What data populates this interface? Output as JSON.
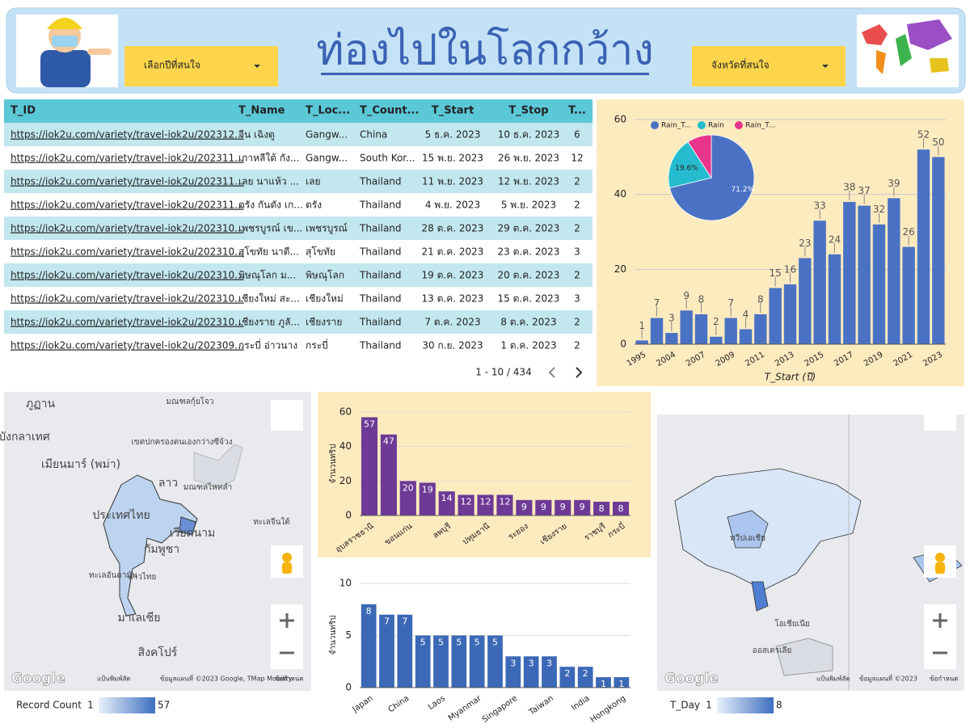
{
  "header": {
    "title": "ท่องไปในโลกกว้าง",
    "dropdown_year": "เลือกปีที่สนใจ",
    "dropdown_province": "จังหวัดที่สนใจ"
  },
  "table": {
    "columns": [
      "T_ID",
      "T_Name",
      "T_Loc...",
      "T_Count...",
      "T_Start",
      "T_Stop",
      "T..."
    ],
    "rows": [
      [
        "https://iok2u.com/variety/travel-iok2u/202312...",
        "จีน เฉิงตู",
        "Gangw...",
        "China",
        "5 ธ.ค. 2023",
        "10 ธ.ค. 2023",
        6
      ],
      [
        "https://iok2u.com/variety/travel-iok2u/202311...",
        "เกาหลีใต้ กัง...",
        "Gangw...",
        "South Kor...",
        "15 พ.ย. 2023",
        "26 พ.ย. 2023",
        12
      ],
      [
        "https://iok2u.com/variety/travel-iok2u/202311...",
        "เลย นาแห้ว ...",
        "เลย",
        "Thailand",
        "11 พ.ย. 2023",
        "12 พ.ย. 2023",
        2
      ],
      [
        "https://iok2u.com/variety/travel-iok2u/202311...",
        "ตรัง กันตัง เก...",
        "ตรัง",
        "Thailand",
        "4 พ.ย. 2023",
        "5 พ.ย. 2023",
        2
      ],
      [
        "https://iok2u.com/variety/travel-iok2u/202310...",
        "เพชรบูรณ์ เข...",
        "เพชรบูรณ์",
        "Thailand",
        "28 ต.ค. 2023",
        "29 ต.ค. 2023",
        2
      ],
      [
        "https://iok2u.com/variety/travel-iok2u/202310...",
        "สุโขทัย นาตี...",
        "สุโขทัย",
        "Thailand",
        "21 ต.ค. 2023",
        "23 ต.ค. 2023",
        3
      ],
      [
        "https://iok2u.com/variety/travel-iok2u/202310...",
        "พิษณุโลก ม...",
        "พิษณุโลก",
        "Thailand",
        "19 ต.ค. 2023",
        "20 ต.ค. 2023",
        2
      ],
      [
        "https://iok2u.com/variety/travel-iok2u/202310...",
        "เชียงใหม่ สะ...",
        "เชียงใหม่",
        "Thailand",
        "13 ต.ค. 2023",
        "15 ต.ค. 2023",
        3
      ],
      [
        "https://iok2u.com/variety/travel-iok2u/202310...",
        "เชียงราย ภูลั...",
        "เชียงราย",
        "Thailand",
        "7 ต.ค. 2023",
        "8 ต.ค. 2023",
        2
      ],
      [
        "https://iok2u.com/variety/travel-iok2u/202309...",
        "กระบี่ อ่าวนาง",
        "กระบี่",
        "Thailand",
        "30 ก.ย. 2023",
        "1 ต.ค. 2023",
        2
      ]
    ],
    "pagination": "1 - 10 / 434"
  },
  "chart_data": [
    {
      "type": "bar",
      "x_label": "T_Start (ปี)",
      "categories": [
        "1995",
        null,
        "2004",
        null,
        "2007",
        null,
        "2009",
        null,
        "2011",
        null,
        "2013",
        null,
        "2015",
        null,
        "2017",
        null,
        "2019",
        null,
        "2021",
        null,
        "2023"
      ],
      "values": [
        1,
        7,
        3,
        9,
        8,
        2,
        7,
        4,
        8,
        15,
        16,
        23,
        33,
        24,
        38,
        37,
        32,
        39,
        26,
        52,
        50
      ],
      "color": "#4a72c4",
      "ylim": [
        0,
        60
      ],
      "yticks": [
        0,
        20,
        40,
        60
      ],
      "grid": true,
      "label_position": "above"
    },
    {
      "type": "pie",
      "categories": [
        "Rain_T...",
        "Rain",
        "Rain_T..."
      ],
      "values": [
        71.2,
        19.6,
        9.2
      ],
      "value_labels": [
        "71.2%",
        "19.6%",
        null
      ],
      "colors": [
        "#4a72c4",
        "#26bccf",
        "#e8348a"
      ]
    },
    {
      "type": "bar",
      "y_label": "จำนวนทริป",
      "categories": [
        "อุบลราชธานี",
        null,
        "ขอนแก่น",
        null,
        "ลพบุรี",
        null,
        "ปทุมธานี",
        null,
        "ระยอง",
        null,
        "เชียงราย",
        null,
        "ราชบุรี",
        "กระบี่"
      ],
      "values": [
        57,
        47,
        20,
        19,
        14,
        12,
        12,
        12,
        9,
        9,
        9,
        9,
        8,
        8
      ],
      "color": "#6d3a96",
      "ylim": [
        0,
        60
      ],
      "yticks": [
        0,
        20,
        40,
        60
      ],
      "grid": true,
      "label_position": "inside"
    },
    {
      "type": "bar",
      "y_label": "จำนวนทริป",
      "categories": [
        "Japan",
        null,
        "China",
        null,
        "Laos",
        null,
        "Myanmar",
        null,
        "Singapore",
        null,
        "Taiwan",
        null,
        "India",
        null,
        "Hongkong"
      ],
      "values": [
        8,
        7,
        7,
        5,
        5,
        5,
        5,
        5,
        3,
        3,
        3,
        2,
        2,
        1,
        1
      ],
      "color": "#3c69b7",
      "ylim": [
        0,
        10
      ],
      "yticks": [
        0,
        5,
        10
      ],
      "grid": true,
      "label_position": "inside"
    }
  ],
  "maps": [
    {
      "labels": [
        "ภูฏาน",
        "บังกลาเทศ",
        "เมียนมาร์ (พม่า)",
        "ลาว",
        "ประเทศไทย",
        "เวียดนาม",
        "กัมพูชา",
        "มาเลเซีย",
        "สิงคโปร์",
        "มณฑลกุ้ยโจว",
        "เขตปกครองตนเองกว่างซีจ้วง",
        "มณฑลไหหลำ",
        "ทะเลจีนใต้",
        "ทะเลอันดามัน",
        "อ่าวไทย"
      ],
      "footer": [
        "Google",
        "แป้นพิมพ์ลัด",
        "ข้อมูลแผนที่ ©2023 Google, TMap Mobility",
        "ข้อกำหนด"
      ],
      "legend": {
        "title": "Record Count",
        "min": 1,
        "max": 57
      }
    },
    {
      "labels": [
        "ทวีปเอเชีย",
        "ออสเตรเลีย",
        "โอเชียเนีย"
      ],
      "footer": [
        "Google",
        "แป้นพิมพ์ลัด",
        "ข้อมูลแผนที่ ©2023",
        "ข้อกำหนด"
      ],
      "legend": {
        "title": "T_Day",
        "min": 1,
        "max": 8
      }
    }
  ]
}
